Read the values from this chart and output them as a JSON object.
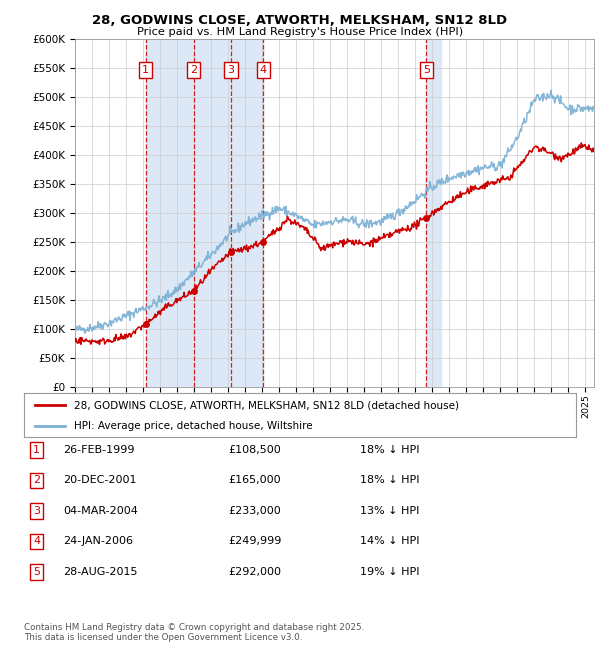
{
  "title": "28, GODWINS CLOSE, ATWORTH, MELKSHAM, SN12 8LD",
  "subtitle": "Price paid vs. HM Land Registry's House Price Index (HPI)",
  "ylabel_ticks": [
    "£0",
    "£50K",
    "£100K",
    "£150K",
    "£200K",
    "£250K",
    "£300K",
    "£350K",
    "£400K",
    "£450K",
    "£500K",
    "£550K",
    "£600K"
  ],
  "ytick_values": [
    0,
    50000,
    100000,
    150000,
    200000,
    250000,
    300000,
    350000,
    400000,
    450000,
    500000,
    550000,
    600000
  ],
  "xmin": 1995.0,
  "xmax": 2025.5,
  "ymin": 0,
  "ymax": 600000,
  "sale_points": [
    {
      "num": 1,
      "year": 1999.15,
      "price": 108500
    },
    {
      "num": 2,
      "year": 2001.97,
      "price": 165000
    },
    {
      "num": 3,
      "year": 2004.17,
      "price": 233000
    },
    {
      "num": 4,
      "year": 2006.07,
      "price": 249999
    },
    {
      "num": 5,
      "year": 2015.65,
      "price": 292000
    }
  ],
  "shade_bands": [
    [
      1999.15,
      2001.97
    ],
    [
      2001.97,
      2004.17
    ],
    [
      2004.17,
      2006.07
    ],
    [
      2015.65,
      2016.5
    ]
  ],
  "legend_line1": "28, GODWINS CLOSE, ATWORTH, MELKSHAM, SN12 8LD (detached house)",
  "legend_line2": "HPI: Average price, detached house, Wiltshire",
  "table_rows": [
    {
      "num": 1,
      "date": "26-FEB-1999",
      "price": "£108,500",
      "note": "18% ↓ HPI"
    },
    {
      "num": 2,
      "date": "20-DEC-2001",
      "price": "£165,000",
      "note": "18% ↓ HPI"
    },
    {
      "num": 3,
      "date": "04-MAR-2004",
      "price": "£233,000",
      "note": "13% ↓ HPI"
    },
    {
      "num": 4,
      "date": "24-JAN-2006",
      "price": "£249,999",
      "note": "14% ↓ HPI"
    },
    {
      "num": 5,
      "date": "28-AUG-2015",
      "price": "£292,000",
      "note": "19% ↓ HPI"
    }
  ],
  "footnote": "Contains HM Land Registry data © Crown copyright and database right 2025.\nThis data is licensed under the Open Government Licence v3.0.",
  "red_color": "#cc0000",
  "blue_color": "#7aafd4",
  "bg_color": "#ffffff",
  "grid_color": "#cccccc",
  "shade_color": "#dce8f5"
}
